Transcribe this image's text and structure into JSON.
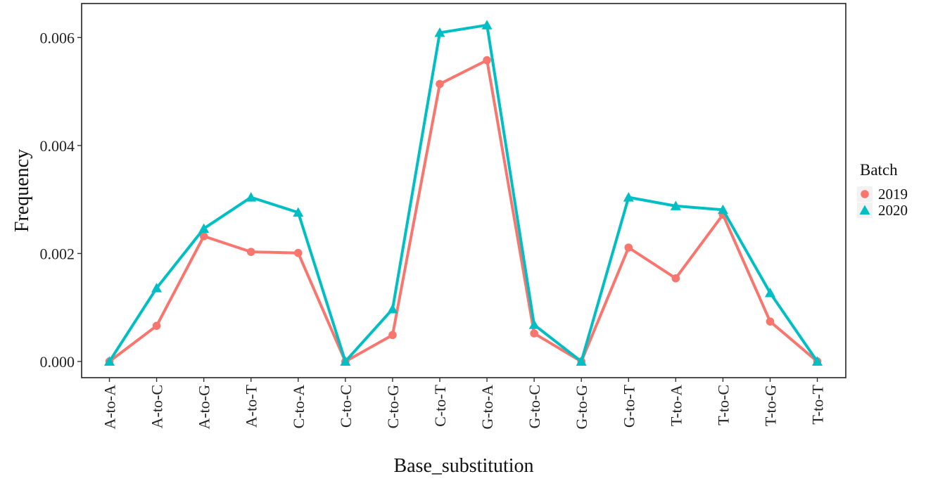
{
  "chart_data": {
    "type": "line",
    "xlabel": "Base_substitution",
    "ylabel": "Frequency",
    "categories": [
      "A-to-A",
      "A-to-C",
      "A-to-G",
      "A-to-T",
      "C-to-A",
      "C-to-C",
      "C-to-G",
      "C-to-T",
      "G-to-A",
      "G-to-C",
      "G-to-G",
      "G-to-T",
      "T-to-A",
      "T-to-C",
      "T-to-G",
      "T-to-T"
    ],
    "ylim": [
      -0.0003,
      0.00663
    ],
    "yticks": [
      0,
      0.002,
      0.004,
      0.006
    ],
    "ytick_labels": [
      "0.000",
      "0.002",
      "0.004",
      "0.006"
    ],
    "grid": false,
    "legend": {
      "title": "Batch",
      "position": "right"
    },
    "series": [
      {
        "name": "2019",
        "color": "#F8766D",
        "marker": "circle",
        "values": [
          0.0,
          0.00066,
          0.00232,
          0.00203,
          0.00201,
          0.0,
          0.00049,
          0.00514,
          0.00558,
          0.00052,
          0.0,
          0.00211,
          0.00154,
          0.00272,
          0.00074,
          0.0
        ]
      },
      {
        "name": "2020",
        "color": "#00BFC4",
        "marker": "triangle",
        "values": [
          0.0,
          0.00136,
          0.00246,
          0.00304,
          0.00276,
          0.0,
          0.00097,
          0.00609,
          0.00623,
          0.00068,
          0.0,
          0.00304,
          0.00288,
          0.00281,
          0.00127,
          0.0
        ]
      }
    ]
  }
}
